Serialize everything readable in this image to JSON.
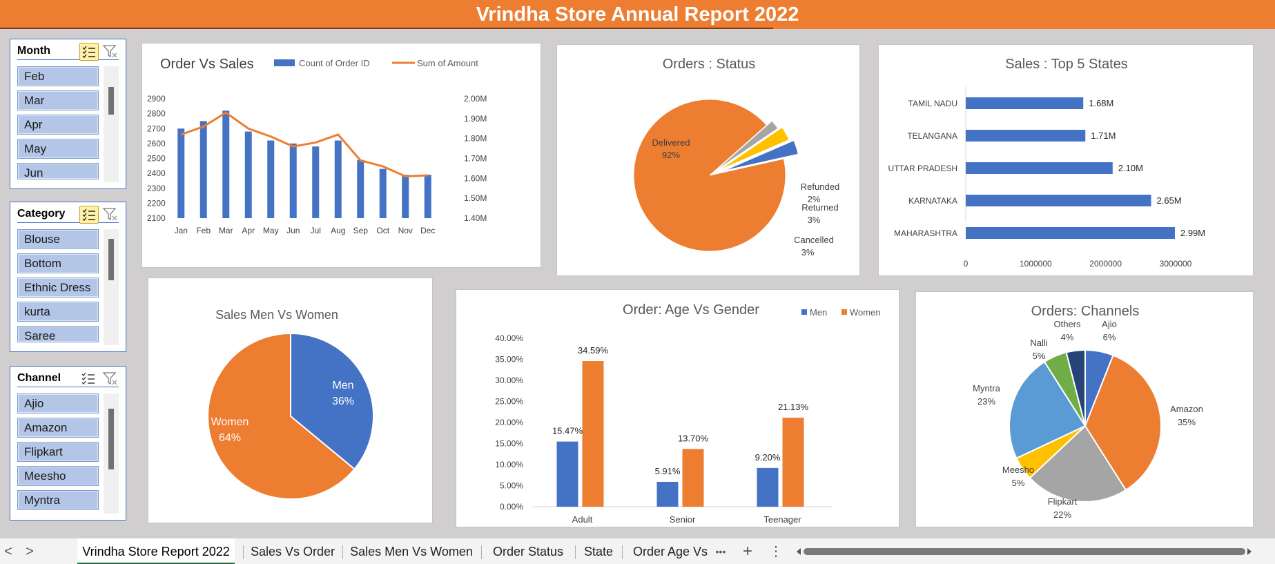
{
  "title": "Vrindha Store Annual Report 2022",
  "slicers": {
    "month": {
      "title": "Month",
      "items": [
        "Feb",
        "Mar",
        "Apr",
        "May",
        "Jun"
      ]
    },
    "category": {
      "title": "Category",
      "items": [
        "Blouse",
        "Bottom",
        "Ethnic Dress",
        "kurta",
        "Saree"
      ]
    },
    "channel": {
      "title": "Channel",
      "items": [
        "Ajio",
        "Amazon",
        "Flipkart",
        "Meesho",
        "Myntra"
      ]
    }
  },
  "chart_data": [
    {
      "id": "order_vs_sales",
      "type": "bar",
      "title": "Order Vs Sales",
      "categories": [
        "Jan",
        "Feb",
        "Mar",
        "Apr",
        "May",
        "Jun",
        "Jul",
        "Aug",
        "Sep",
        "Oct",
        "Nov",
        "Dec"
      ],
      "series": [
        {
          "name": "Count of Order ID",
          "type": "bar",
          "axis": "left",
          "color": "#4472c4",
          "values": [
            2700,
            2750,
            2820,
            2680,
            2620,
            2600,
            2580,
            2620,
            2490,
            2430,
            2390,
            2390
          ]
        },
        {
          "name": "Sum of Amount",
          "type": "line",
          "axis": "right",
          "color": "#ed7d31",
          "values": [
            1.82,
            1.86,
            1.93,
            1.85,
            1.81,
            1.76,
            1.78,
            1.82,
            1.69,
            1.66,
            1.61,
            1.615
          ]
        }
      ],
      "y_left": {
        "ticks": [
          "2900",
          "2800",
          "2700",
          "2600",
          "2500",
          "2400",
          "2300",
          "2200",
          "2100"
        ],
        "range": [
          2100,
          2900
        ]
      },
      "y_right": {
        "ticks": [
          "2.00M",
          "1.90M",
          "1.80M",
          "1.70M",
          "1.60M",
          "1.50M",
          "1.40M"
        ],
        "range": [
          1.4,
          2.0
        ]
      }
    },
    {
      "id": "orders_status",
      "type": "pie",
      "title": "Orders : Status",
      "slices": [
        {
          "label": "Delivered",
          "pct_label": "92%",
          "value": 92,
          "color": "#ed7d31"
        },
        {
          "label": "Refunded",
          "pct_label": "2%",
          "value": 2,
          "color": "#a5a5a5"
        },
        {
          "label": "Returned",
          "pct_label": "3%",
          "value": 3,
          "color": "#ffc000"
        },
        {
          "label": "Cancelled",
          "pct_label": "3%",
          "value": 3,
          "color": "#4472c4"
        }
      ]
    },
    {
      "id": "top5_states",
      "type": "bar",
      "orientation": "horizontal",
      "title": "Sales : Top 5 States",
      "categories": [
        "TAMIL NADU",
        "TELANGANA",
        "UTTAR PRADESH",
        "KARNATAKA",
        "MAHARASHTRA"
      ],
      "values": [
        1680000,
        1710000,
        2100000,
        2650000,
        2990000
      ],
      "value_labels": [
        "1.68M",
        "1.71M",
        "2.10M",
        "2.65M",
        "2.99M"
      ],
      "x_ticks": [
        "0",
        "1000000",
        "2000000",
        "3000000"
      ],
      "xlim": [
        0,
        3000000
      ],
      "color": "#4472c4"
    },
    {
      "id": "sales_men_women",
      "type": "pie",
      "title": "Sales Men Vs Women",
      "slices": [
        {
          "label": "Men",
          "pct_label": "36%",
          "value": 36,
          "color": "#4472c4"
        },
        {
          "label": "Women",
          "pct_label": "64%",
          "value": 64,
          "color": "#ed7d31"
        }
      ]
    },
    {
      "id": "age_vs_gender",
      "type": "bar",
      "title": "Order: Age Vs Gender",
      "categories": [
        "Adult",
        "Senior",
        "Teenager"
      ],
      "series": [
        {
          "name": "Men",
          "color": "#4472c4",
          "values": [
            15.47,
            5.91,
            9.2
          ],
          "labels": [
            "15.47%",
            "5.91%",
            "9.20%"
          ]
        },
        {
          "name": "Women",
          "color": "#ed7d31",
          "values": [
            34.59,
            13.7,
            21.13
          ],
          "labels": [
            "34.59%",
            "13.70%",
            "21.13%"
          ]
        }
      ],
      "y_ticks": [
        "40.00%",
        "35.00%",
        "30.00%",
        "25.00%",
        "20.00%",
        "15.00%",
        "10.00%",
        "5.00%",
        "0.00%"
      ],
      "ylim": [
        0,
        40
      ]
    },
    {
      "id": "orders_channels",
      "type": "pie",
      "title": "Orders: Channels",
      "slices": [
        {
          "label": "Ajio",
          "pct_label": "6%",
          "value": 6,
          "color": "#4472c4"
        },
        {
          "label": "Amazon",
          "pct_label": "35%",
          "value": 35,
          "color": "#ed7d31"
        },
        {
          "label": "Flipkart",
          "pct_label": "22%",
          "value": 22,
          "color": "#a5a5a5"
        },
        {
          "label": "Meesho",
          "pct_label": "5%",
          "value": 5,
          "color": "#ffc000"
        },
        {
          "label": "Myntra",
          "pct_label": "23%",
          "value": 23,
          "color": "#5b9bd5"
        },
        {
          "label": "Nalli",
          "pct_label": "5%",
          "value": 5,
          "color": "#70ad47"
        },
        {
          "label": "Others",
          "pct_label": "4%",
          "value": 4,
          "color": "#264478"
        }
      ]
    }
  ],
  "tabs": [
    "Vrindha Store Report 2022",
    "Sales Vs Order",
    "Sales Men Vs Women",
    "Order Status",
    "State",
    "Order Age Vs"
  ],
  "tab_nav": {
    "prev": "<",
    "next": ">",
    "more": "•••",
    "add": "+",
    "menu": "⋮"
  }
}
